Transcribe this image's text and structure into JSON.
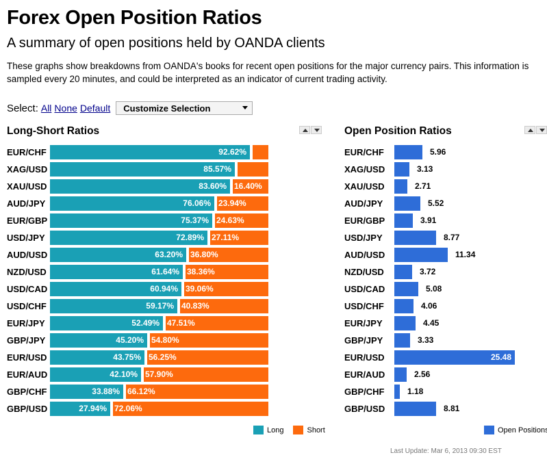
{
  "page": {
    "title": "Forex Open Position Ratios",
    "subtitle": "A summary of open positions held by OANDA clients",
    "intro": "These graphs show breakdowns from OANDA's books for recent open positions for the major currency pairs. This information is sampled every 20 minutes, and could be interpreted as an indicator of current trading activity.",
    "footer": "Last Update: Mar 6, 2013 09:30 EST"
  },
  "select": {
    "label": "Select:",
    "all": "All",
    "none": "None",
    "default": "Default",
    "dropdown": "Customize Selection"
  },
  "long_short": {
    "title": "Long-Short Ratios",
    "legend_long": "Long",
    "legend_short": "Short",
    "colors": {
      "long": "#1aa0b5",
      "short": "#fd6a0d"
    }
  },
  "open_position": {
    "title": "Open Position Ratios",
    "legend": "Open Positions",
    "color": "#2e6dd8"
  },
  "chart_data": [
    {
      "type": "bar",
      "title": "Long-Short Ratios",
      "categories": [
        "EUR/CHF",
        "XAG/USD",
        "XAU/USD",
        "AUD/JPY",
        "EUR/GBP",
        "USD/JPY",
        "AUD/USD",
        "NZD/USD",
        "USD/CAD",
        "USD/CHF",
        "EUR/JPY",
        "GBP/JPY",
        "EUR/USD",
        "EUR/AUD",
        "GBP/CHF",
        "GBP/USD"
      ],
      "series": [
        {
          "name": "Long",
          "values": [
            92.62,
            85.57,
            83.6,
            76.06,
            75.37,
            72.89,
            63.2,
            61.64,
            60.94,
            59.17,
            52.49,
            45.2,
            43.75,
            42.1,
            33.88,
            27.94
          ],
          "labels": [
            "92.62%",
            "85.57%",
            "83.60%",
            "76.06%",
            "75.37%",
            "72.89%",
            "63.20%",
            "61.64%",
            "60.94%",
            "59.17%",
            "52.49%",
            "45.20%",
            "43.75%",
            "42.10%",
            "33.88%",
            "27.94%"
          ]
        },
        {
          "name": "Short",
          "values": [
            7.38,
            14.43,
            16.4,
            23.94,
            24.63,
            27.11,
            36.8,
            38.36,
            39.06,
            40.83,
            47.51,
            54.8,
            56.25,
            57.9,
            66.12,
            72.06
          ],
          "labels": [
            "",
            "",
            "16.40%",
            "23.94%",
            "24.63%",
            "27.11%",
            "36.80%",
            "38.36%",
            "39.06%",
            "40.83%",
            "47.51%",
            "54.80%",
            "56.25%",
            "57.90%",
            "66.12%",
            "72.06%"
          ]
        }
      ],
      "stacked": true,
      "orientation": "horizontal",
      "legend": "bottom-right"
    },
    {
      "type": "bar",
      "title": "Open Position Ratios",
      "categories": [
        "EUR/CHF",
        "XAG/USD",
        "XAU/USD",
        "AUD/JPY",
        "EUR/GBP",
        "USD/JPY",
        "AUD/USD",
        "NZD/USD",
        "USD/CAD",
        "USD/CHF",
        "EUR/JPY",
        "GBP/JPY",
        "EUR/USD",
        "EUR/AUD",
        "GBP/CHF",
        "GBP/USD"
      ],
      "series": [
        {
          "name": "Open Positions",
          "values": [
            5.96,
            3.13,
            2.71,
            5.52,
            3.91,
            8.77,
            11.34,
            3.72,
            5.08,
            4.06,
            4.45,
            3.33,
            25.48,
            2.56,
            1.18,
            8.81
          ],
          "labels": [
            "5.96",
            "3.13",
            "2.71",
            "5.52",
            "3.91",
            "8.77",
            "11.34",
            "3.72",
            "5.08",
            "4.06",
            "4.45",
            "3.33",
            "25.48",
            "2.56",
            "1.18",
            "8.81"
          ]
        }
      ],
      "orientation": "horizontal",
      "legend": "bottom-right"
    }
  ]
}
